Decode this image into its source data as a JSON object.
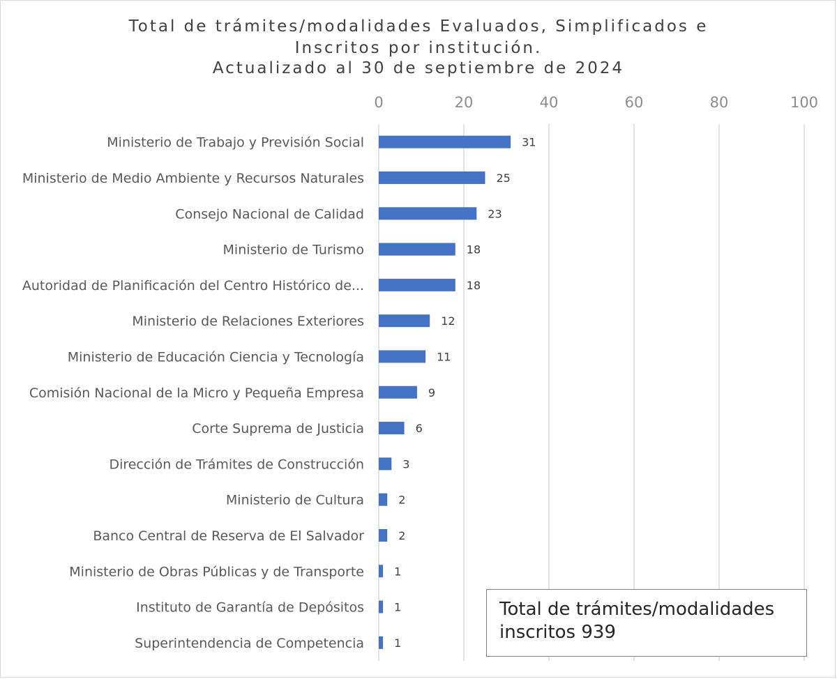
{
  "chart_data": {
    "type": "bar",
    "orientation": "horizontal",
    "title_lines": [
      "Total de trámites/modalidades Evaluados, Simplificados e",
      "Inscritos por institución.",
      "Actualizado al 30 de septiembre de 2024"
    ],
    "categories": [
      "Ministerio de Trabajo y Previsión Social",
      "Ministerio de Medio Ambiente y Recursos Naturales",
      "Consejo Nacional de Calidad",
      "Ministerio de Turismo",
      "Autoridad de Planificación del Centro Histórico de...",
      "Ministerio de Relaciones Exteriores",
      "Ministerio de Educación Ciencia y Tecnología",
      "Comisión Nacional de la Micro y Pequeña Empresa",
      "Corte Suprema de Justicia",
      "Dirección de Trámites de Construcción",
      "Ministerio de Cultura",
      "Banco Central de Reserva de El Salvador",
      "Ministerio de Obras Públicas y de Transporte",
      "Instituto de Garantía de Depósitos",
      "Superintendencia de Competencia"
    ],
    "values": [
      31,
      25,
      23,
      18,
      18,
      12,
      11,
      9,
      6,
      3,
      2,
      2,
      1,
      1,
      1
    ],
    "xlim": [
      0,
      100
    ],
    "xticks": [
      0,
      20,
      40,
      60,
      80,
      100
    ],
    "x_axis_position": "top",
    "grid": true,
    "bar_color": "#4472c4",
    "data_labels": true
  },
  "annotation": {
    "lines": [
      "Total de trámites/modalidades",
      "inscritos 939"
    ]
  }
}
